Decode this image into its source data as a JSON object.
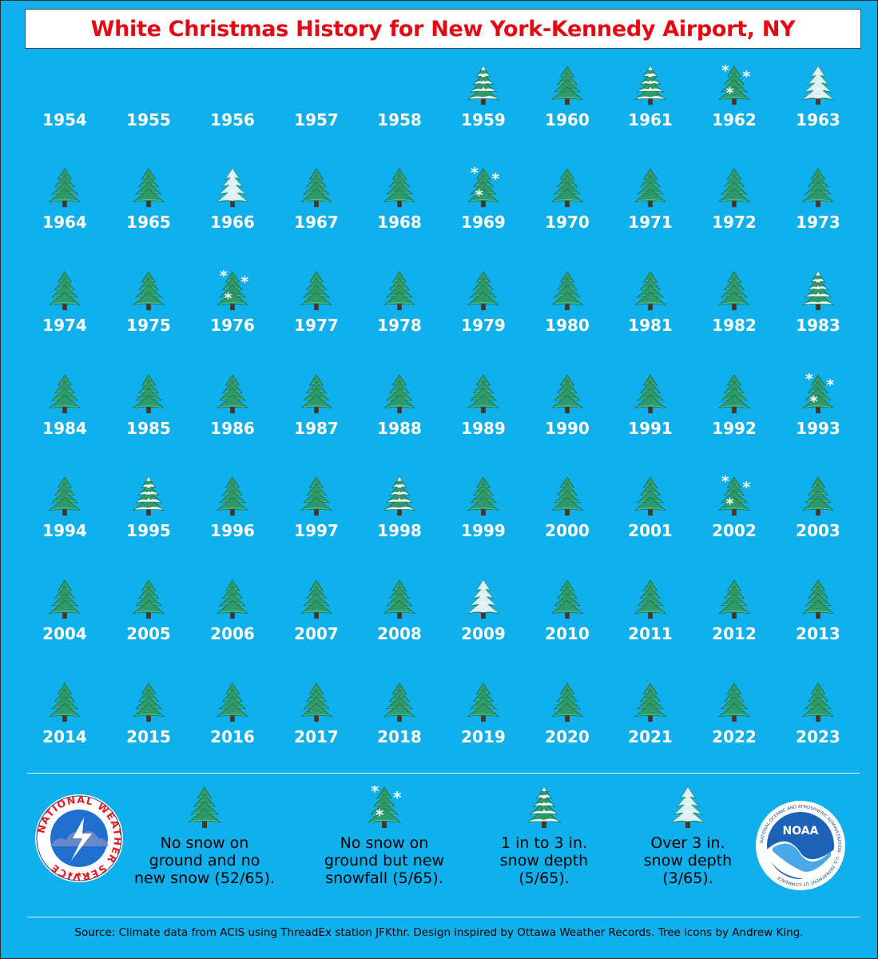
{
  "title": "White Christmas History for New York-Kennedy Airport, NY",
  "icons": {
    "none": "tree-icon",
    "snowfall": "tree-snowfall-icon",
    "light": "tree-light-snow-icon",
    "heavy": "tree-heavy-snow-icon"
  },
  "colors": {
    "background": "#0fb0ec",
    "title": "#e50914",
    "tree": "#2e9a6a",
    "snow": "#ffffff"
  },
  "years": [
    {
      "year": "1954",
      "category": "none"
    },
    {
      "year": "1955",
      "category": "none"
    },
    {
      "year": "1956",
      "category": "none"
    },
    {
      "year": "1957",
      "category": "none"
    },
    {
      "year": "1958",
      "category": "none"
    },
    {
      "year": "1959",
      "category": "light"
    },
    {
      "year": "1960",
      "category": "tree"
    },
    {
      "year": "1961",
      "category": "light"
    },
    {
      "year": "1962",
      "category": "snowfall"
    },
    {
      "year": "1963",
      "category": "heavy"
    },
    {
      "year": "1964",
      "category": "tree"
    },
    {
      "year": "1965",
      "category": "tree"
    },
    {
      "year": "1966",
      "category": "heavy"
    },
    {
      "year": "1967",
      "category": "tree"
    },
    {
      "year": "1968",
      "category": "tree"
    },
    {
      "year": "1969",
      "category": "snowfall"
    },
    {
      "year": "1970",
      "category": "tree"
    },
    {
      "year": "1971",
      "category": "tree"
    },
    {
      "year": "1972",
      "category": "tree"
    },
    {
      "year": "1973",
      "category": "tree"
    },
    {
      "year": "1974",
      "category": "tree"
    },
    {
      "year": "1975",
      "category": "tree"
    },
    {
      "year": "1976",
      "category": "snowfall"
    },
    {
      "year": "1977",
      "category": "tree"
    },
    {
      "year": "1978",
      "category": "tree"
    },
    {
      "year": "1979",
      "category": "tree"
    },
    {
      "year": "1980",
      "category": "tree"
    },
    {
      "year": "1981",
      "category": "tree"
    },
    {
      "year": "1982",
      "category": "tree"
    },
    {
      "year": "1983",
      "category": "light"
    },
    {
      "year": "1984",
      "category": "tree"
    },
    {
      "year": "1985",
      "category": "tree"
    },
    {
      "year": "1986",
      "category": "tree"
    },
    {
      "year": "1987",
      "category": "tree"
    },
    {
      "year": "1988",
      "category": "tree"
    },
    {
      "year": "1989",
      "category": "tree"
    },
    {
      "year": "1990",
      "category": "tree"
    },
    {
      "year": "1991",
      "category": "tree"
    },
    {
      "year": "1992",
      "category": "tree"
    },
    {
      "year": "1993",
      "category": "snowfall"
    },
    {
      "year": "1994",
      "category": "tree"
    },
    {
      "year": "1995",
      "category": "light"
    },
    {
      "year": "1996",
      "category": "tree"
    },
    {
      "year": "1997",
      "category": "tree"
    },
    {
      "year": "1998",
      "category": "light"
    },
    {
      "year": "1999",
      "category": "tree"
    },
    {
      "year": "2000",
      "category": "tree"
    },
    {
      "year": "2001",
      "category": "tree"
    },
    {
      "year": "2002",
      "category": "snowfall"
    },
    {
      "year": "2003",
      "category": "tree"
    },
    {
      "year": "2004",
      "category": "tree"
    },
    {
      "year": "2005",
      "category": "tree"
    },
    {
      "year": "2006",
      "category": "tree"
    },
    {
      "year": "2007",
      "category": "tree"
    },
    {
      "year": "2008",
      "category": "tree"
    },
    {
      "year": "2009",
      "category": "heavy"
    },
    {
      "year": "2010",
      "category": "tree"
    },
    {
      "year": "2011",
      "category": "tree"
    },
    {
      "year": "2012",
      "category": "tree"
    },
    {
      "year": "2013",
      "category": "tree"
    },
    {
      "year": "2014",
      "category": "tree"
    },
    {
      "year": "2015",
      "category": "tree"
    },
    {
      "year": "2016",
      "category": "tree"
    },
    {
      "year": "2017",
      "category": "tree"
    },
    {
      "year": "2018",
      "category": "tree"
    },
    {
      "year": "2019",
      "category": "tree"
    },
    {
      "year": "2020",
      "category": "tree"
    },
    {
      "year": "2021",
      "category": "tree"
    },
    {
      "year": "2022",
      "category": "tree"
    },
    {
      "year": "2023",
      "category": "tree"
    }
  ],
  "legend": {
    "no_snow": {
      "line1": "No snow on",
      "line2": "ground and no",
      "line3": "new snow (52/65)."
    },
    "new_snowfall": {
      "line1": "No snow on",
      "line2": "ground but new",
      "line3": "snowfall (5/65)."
    },
    "light_depth": {
      "line1": "1 in to 3 in.",
      "line2": "snow depth",
      "line3": "(5/65)."
    },
    "heavy_depth": {
      "line1": "Over 3 in.",
      "line2": "snow depth",
      "line3": "(3/65)."
    }
  },
  "logos": {
    "nws_text": "NATIONAL WEATHER SERVICE",
    "noaa_text": "NOAA",
    "noaa_ring_text": "NATIONAL OCEANIC AND ATMOSPHERIC ADMINISTRATION · U.S. DEPARTMENT OF COMMERCE"
  },
  "footer": "Source: Climate data from ACIS using ThreadEx station JFKthr. Design inspired by Ottawa Weather Records. Tree icons by Andrew King."
}
